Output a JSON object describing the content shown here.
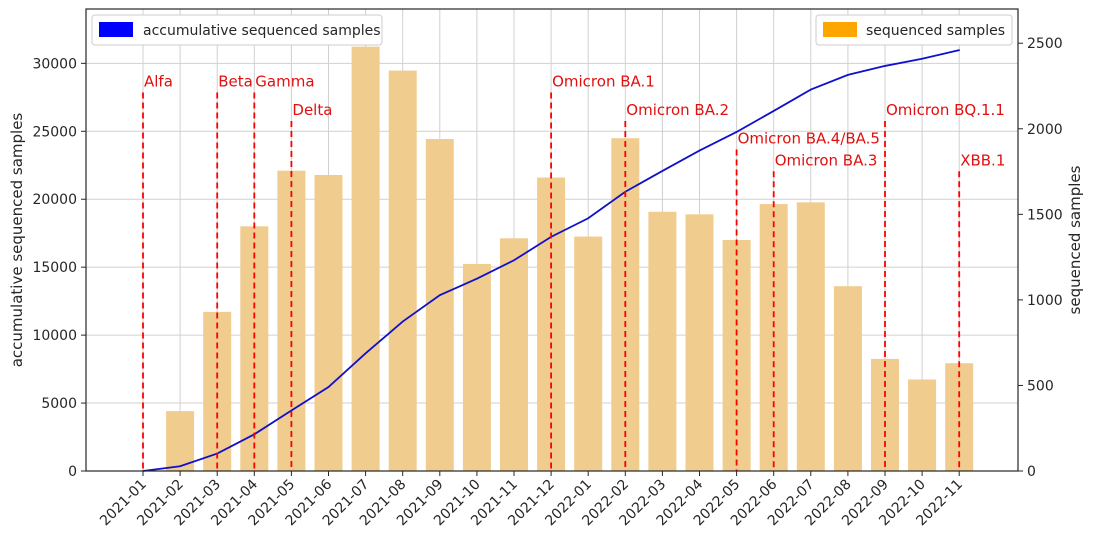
{
  "chart_data": {
    "type": "bar+line",
    "categories": [
      "2021-01",
      "2021-02",
      "2021-03",
      "2021-04",
      "2021-05",
      "2021-06",
      "2021-07",
      "2021-08",
      "2021-09",
      "2021-10",
      "2021-11",
      "2021-12",
      "2022-01",
      "2022-02",
      "2022-03",
      "2022-04",
      "2022-05",
      "2022-06",
      "2022-07",
      "2022-08",
      "2022-09",
      "2022-10",
      "2022-11"
    ],
    "bar_series": {
      "name": "sequenced samples",
      "color": "#f0cc8e",
      "legend_color": "#ffa500",
      "values": [
        0,
        350,
        930,
        1430,
        1755,
        1730,
        2480,
        2340,
        1940,
        1210,
        1360,
        1715,
        1370,
        1945,
        1515,
        1500,
        1350,
        1560,
        1570,
        1080,
        655,
        535,
        630
      ]
    },
    "line_series": {
      "name": "accumulative sequenced samples",
      "color": "#1010cc",
      "legend_color": "#0000ff",
      "values": [
        0,
        350,
        1280,
        2700,
        4450,
        6180,
        8660,
        11000,
        12940,
        14150,
        15510,
        17230,
        18600,
        20550,
        22080,
        23580,
        24950,
        26500,
        28070,
        29150,
        29810,
        30340,
        30970
      ]
    },
    "ylabel_left": "accumulative sequenced samples",
    "ylabel_right": "sequenced samples",
    "ylim_left": [
      0,
      34000
    ],
    "ylim_right": [
      0,
      2700
    ],
    "yticks_left": [
      0,
      5000,
      10000,
      15000,
      20000,
      25000,
      30000
    ],
    "yticks_right": [
      0,
      500,
      1000,
      1500,
      2000,
      2500
    ],
    "grid": true,
    "legend_left_position": "top-left",
    "legend_right_position": "top-right",
    "variant_line_color": "#ff0000",
    "variants": [
      {
        "label": "Alfa",
        "category": "2021-01",
        "label_y": 28300
      },
      {
        "label": "Beta",
        "category": "2021-03",
        "label_y": 28300
      },
      {
        "label": "Gamma",
        "category": "2021-04",
        "label_y": 28300
      },
      {
        "label": "Delta",
        "category": "2021-05",
        "label_y": 26200
      },
      {
        "label": "Omicron BA.1",
        "category": "2021-12",
        "label_y": 28300
      },
      {
        "label": "Omicron BA.2",
        "category": "2022-02",
        "label_y": 26200
      },
      {
        "label": "Omicron BA.4/BA.5",
        "category": "2022-05",
        "label_y": 24100
      },
      {
        "label": "Omicron BA.3",
        "category": "2022-06",
        "label_y": 22500
      },
      {
        "label": "Omicron BQ.1.1",
        "category": "2022-09",
        "label_y": 26200
      },
      {
        "label": "XBB.1",
        "category": "2022-11",
        "label_y": 22500
      }
    ]
  }
}
